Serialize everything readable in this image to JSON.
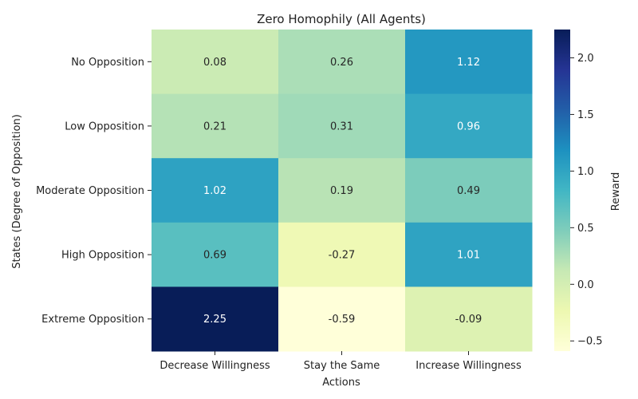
{
  "chart_data": {
    "type": "heatmap",
    "title": "Zero Homophily (All Agents)",
    "xlabel": "Actions",
    "ylabel": "States (Degree of Opposition)",
    "x_categories": [
      "Decrease Willingness",
      "Stay the Same",
      "Increase Willingness"
    ],
    "y_categories": [
      "No Opposition",
      "Low Opposition",
      "Moderate Opposition",
      "High Opposition",
      "Extreme Opposition"
    ],
    "values": [
      [
        0.08,
        0.26,
        1.12
      ],
      [
        0.21,
        0.31,
        0.96
      ],
      [
        1.02,
        0.19,
        0.49
      ],
      [
        0.69,
        -0.27,
        1.01
      ],
      [
        2.25,
        -0.59,
        -0.09
      ]
    ],
    "value_labels": [
      [
        "0.08",
        "0.26",
        "1.12"
      ],
      [
        "0.21",
        "0.31",
        "0.96"
      ],
      [
        "1.02",
        "0.19",
        "0.49"
      ],
      [
        "0.69",
        "-0.27",
        "1.01"
      ],
      [
        "2.25",
        "-0.59",
        "-0.09"
      ]
    ],
    "colorbar": {
      "label": "Reward",
      "vmin": -0.59,
      "vmax": 2.25,
      "ticks": [
        "−0.5",
        "0.0",
        "0.5",
        "1.0",
        "1.5",
        "2.0"
      ],
      "tick_values": [
        -0.5,
        0.0,
        0.5,
        1.0,
        1.5,
        2.0
      ]
    },
    "colormap": "YlGnBu",
    "colormap_stops": [
      "#ffffd9",
      "#edf8b1",
      "#c7e9b4",
      "#7fcdbb",
      "#41b6c4",
      "#1d91c0",
      "#225ea8",
      "#253494",
      "#081d58"
    ]
  }
}
